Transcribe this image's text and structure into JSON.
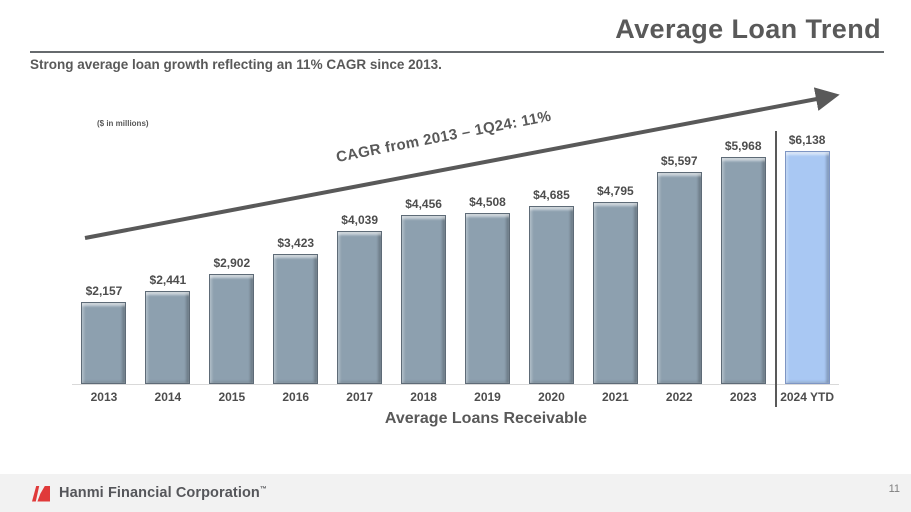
{
  "slide": {
    "title": "Average Loan Trend",
    "subtitle": "Strong average loan growth reflecting an 11% CAGR since 2013.",
    "units_note": "($ in millions)",
    "page_number": "11"
  },
  "chart_data": {
    "type": "bar",
    "title": "Average Loans Receivable",
    "annotation": "CAGR from 2013 – 1Q24: 11%",
    "categories": [
      "2013",
      "2014",
      "2015",
      "2016",
      "2017",
      "2018",
      "2019",
      "2020",
      "2021",
      "2022",
      "2023",
      "2024 YTD"
    ],
    "values": [
      2157,
      2441,
      2902,
      3423,
      4039,
      4456,
      4508,
      4685,
      4795,
      5597,
      5968,
      6138
    ],
    "value_labels": [
      "$2,157",
      "$2,441",
      "$2,902",
      "$3,423",
      "$4,039",
      "$4,456",
      "$4,508",
      "$4,685",
      "$4,795",
      "$5,597",
      "$5,968",
      "$6,138"
    ],
    "highlight_index": 11,
    "bar_color": "#8da0af",
    "bar_border_color": "#5e6b77",
    "highlight_bar_color": "#a9c8f3",
    "highlight_border_color": "#7e96c4",
    "label_color": "#4d4d4d",
    "arrow_color": "#595959",
    "ylim": [
      0,
      6500
    ],
    "grid": false,
    "legend": null
  },
  "footer": {
    "company": "Hanmi Financial Corporation",
    "trademark": "™",
    "logo": "hanmi-logo",
    "accent_color": "#e03a3a"
  }
}
